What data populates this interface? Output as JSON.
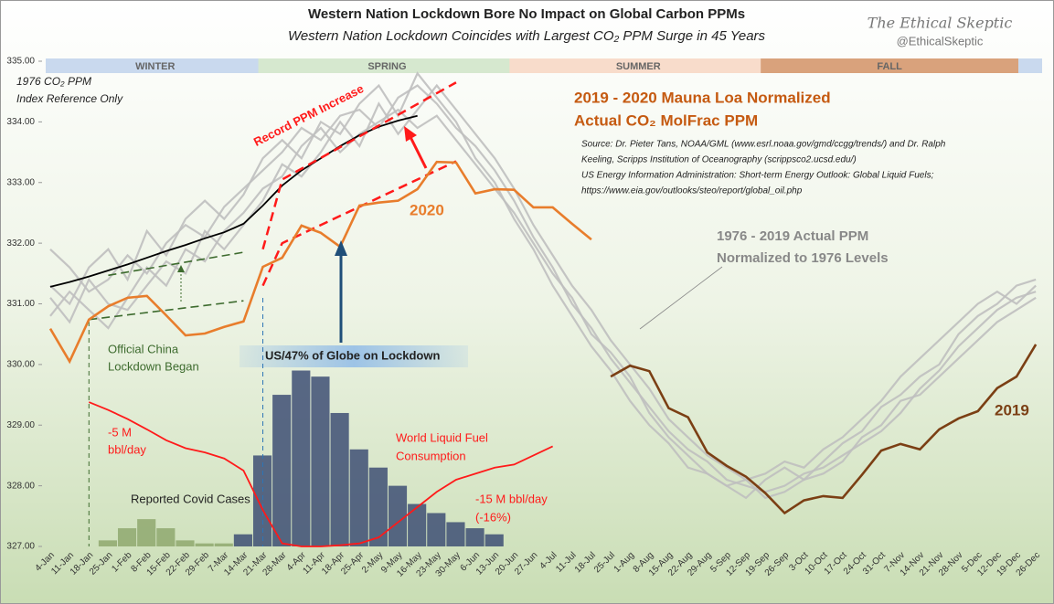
{
  "chart_data": {
    "type": "line",
    "title": "Western Nation Lockdown Bore No Impact on Global Carbon PPMs",
    "subtitle": "Western Nation Lockdown Coincides with Largest CO₂ PPM Surge in 45 Years",
    "brand": "The Ethical Skeptic",
    "handle": "@EthicalSkeptic",
    "categories": [
      "4-Jan",
      "11-Jan",
      "18-Jan",
      "25-Jan",
      "1-Feb",
      "8-Feb",
      "15-Feb",
      "22-Feb",
      "29-Feb",
      "7-Mar",
      "14-Mar",
      "21-Mar",
      "28-Mar",
      "4-Apr",
      "11-Apr",
      "18-Apr",
      "25-Apr",
      "2-May",
      "9-May",
      "16-May",
      "23-May",
      "30-May",
      "6-Jun",
      "13-Jun",
      "20-Jun",
      "27-Jun",
      "4-Jul",
      "11-Jul",
      "18-Jul",
      "25-Jul",
      "1-Aug",
      "8-Aug",
      "15-Aug",
      "22-Aug",
      "29-Aug",
      "5-Sep",
      "12-Sep",
      "19-Sep",
      "26-Sep",
      "3-Oct",
      "10-Oct",
      "17-Oct",
      "24-Oct",
      "31-Oct",
      "7-Nov",
      "14-Nov",
      "21-Nov",
      "28-Nov",
      "5-Dec",
      "12-Dec",
      "19-Dec",
      "26-Dec"
    ],
    "ylim": [
      327,
      335
    ],
    "yticks": [
      {
        "value": 327,
        "label": "327.00"
      },
      {
        "value": 328,
        "label": "328.00"
      },
      {
        "value": 329,
        "label": "329.00"
      },
      {
        "value": 330,
        "label": "330.00"
      },
      {
        "value": 331,
        "label": "331.00"
      },
      {
        "value": 332,
        "label": "332.00"
      },
      {
        "value": 333,
        "label": "333.00"
      },
      {
        "value": 334,
        "label": "334.00"
      },
      {
        "value": 335,
        "label": "335.00"
      }
    ],
    "grid": false,
    "seasons": [
      {
        "label": "WINTER",
        "start": "4-Jan",
        "end": "21-Mar",
        "color": "#c9d9ee"
      },
      {
        "label": "SPRING",
        "start": "21-Mar",
        "end": "20-Jun",
        "color": "#d6e8cf"
      },
      {
        "label": "SUMMER",
        "start": "20-Jun",
        "end": "19-Sep",
        "color": "#f8dccb"
      },
      {
        "label": "FALL",
        "start": "19-Sep",
        "end": "19-Dec",
        "color": "#d9a27c"
      }
    ],
    "reference_lines": [
      {
        "color": "#bfbfbf",
        "values": [
          331.9,
          331.6,
          331.2,
          331.4,
          331.8,
          331.5,
          332.0,
          332.3,
          332.1,
          332.6,
          332.9,
          333.2,
          333.5,
          333.9,
          333.7,
          334.1,
          334.2,
          333.9,
          334.4,
          334.6,
          334.3,
          333.9,
          333.6,
          333.2,
          332.7,
          332.1,
          331.6,
          331.0,
          330.6,
          330.1,
          329.7,
          329.3,
          328.9,
          328.6,
          328.4,
          328.1,
          328.0,
          327.9,
          328.0,
          328.2,
          328.3,
          328.5,
          328.7,
          328.9,
          329.2,
          329.6,
          329.9,
          330.3,
          330.6,
          330.9,
          331.1,
          331.2
        ]
      },
      {
        "color": "#bfbfbf",
        "values": [
          331.3,
          331.0,
          331.6,
          331.9,
          331.4,
          332.2,
          331.8,
          332.4,
          332.7,
          332.4,
          332.8,
          333.4,
          333.7,
          333.4,
          334.0,
          333.8,
          334.3,
          334.6,
          334.1,
          334.8,
          334.4,
          334.0,
          333.4,
          333.0,
          332.4,
          331.9,
          331.3,
          330.8,
          330.3,
          329.9,
          329.4,
          329.0,
          328.7,
          328.3,
          328.2,
          328.0,
          327.8,
          328.1,
          328.3,
          328.1,
          328.4,
          328.7,
          328.9,
          329.3,
          329.5,
          329.8,
          330.0,
          330.5,
          330.8,
          331.0,
          331.3,
          331.4
        ]
      },
      {
        "color": "#bfbfbf",
        "values": [
          330.8,
          331.2,
          330.9,
          330.6,
          331.1,
          331.6,
          331.3,
          331.9,
          331.7,
          332.2,
          332.5,
          332.9,
          333.1,
          333.6,
          333.9,
          333.5,
          333.8,
          334.0,
          334.2,
          333.9,
          334.1,
          333.7,
          333.3,
          332.9,
          332.5,
          332.0,
          331.5,
          331.1,
          330.5,
          330.2,
          329.8,
          329.2,
          328.8,
          328.5,
          328.2,
          328.0,
          328.1,
          327.8,
          327.9,
          328.1,
          328.2,
          328.4,
          328.8,
          329.0,
          329.4,
          329.5,
          329.8,
          330.1,
          330.4,
          330.7,
          330.9,
          331.1
        ]
      },
      {
        "color": "#bfbfbf",
        "values": [
          331.1,
          330.7,
          331.4,
          331.0,
          330.9,
          331.3,
          331.7,
          331.5,
          332.2,
          331.9,
          332.3,
          332.7,
          333.3,
          333.1,
          333.5,
          334.0,
          333.6,
          334.3,
          333.8,
          334.2,
          334.6,
          334.2,
          333.8,
          333.4,
          332.9,
          332.3,
          331.8,
          331.3,
          330.9,
          330.4,
          330.0,
          329.6,
          329.1,
          328.8,
          328.5,
          328.3,
          328.1,
          328.2,
          328.4,
          328.3,
          328.6,
          328.8,
          329.1,
          329.4,
          329.8,
          330.1,
          330.4,
          330.7,
          331.0,
          331.2,
          331.0,
          331.3
        ]
      }
    ],
    "reference_1976": {
      "color": "#000000",
      "values": [
        331.28,
        331.36,
        331.45,
        331.55,
        331.65,
        331.76,
        331.87,
        331.97,
        332.08,
        332.18,
        332.32,
        332.62,
        332.95,
        333.2,
        333.4,
        333.6,
        333.78,
        333.92,
        334.02,
        334.1,
        null,
        null,
        null,
        null,
        null,
        null,
        null,
        null,
        null,
        null,
        null,
        null,
        null,
        null,
        null,
        null,
        null,
        null,
        null,
        null,
        null,
        null,
        null,
        null,
        null,
        null,
        null,
        null,
        null,
        null,
        null,
        null
      ]
    },
    "series": [
      {
        "name": "2020",
        "color": "#e87d2c",
        "values": [
          330.59,
          330.05,
          330.74,
          330.96,
          331.1,
          331.13,
          330.81,
          330.48,
          330.51,
          330.62,
          330.71,
          331.61,
          331.76,
          332.29,
          332.17,
          331.94,
          332.62,
          332.67,
          332.7,
          332.89,
          333.34,
          333.33,
          332.82,
          332.89,
          332.88,
          332.59,
          332.59,
          332.32,
          332.06,
          null,
          null,
          null,
          null,
          null,
          null,
          null,
          null,
          null,
          null,
          null,
          null,
          null,
          null,
          null,
          null,
          null,
          null,
          null,
          null,
          null,
          null,
          null
        ]
      },
      {
        "name": "2019",
        "color": "#7b3f14",
        "values": [
          null,
          null,
          null,
          null,
          null,
          null,
          null,
          null,
          null,
          null,
          null,
          null,
          null,
          null,
          null,
          null,
          null,
          null,
          null,
          null,
          null,
          null,
          null,
          null,
          null,
          null,
          null,
          null,
          null,
          329.8,
          329.98,
          329.89,
          329.28,
          329.13,
          328.55,
          328.33,
          328.15,
          327.88,
          327.55,
          327.76,
          327.83,
          327.8,
          328.18,
          328.58,
          328.69,
          328.6,
          328.93,
          329.11,
          329.23,
          329.61,
          329.8,
          330.33
        ]
      }
    ],
    "trend_lines": [
      {
        "color": "#ff1a1a",
        "x": [
          "21-Mar",
          "28-Mar",
          "30-May"
        ],
        "values": [
          331.9,
          333.05,
          334.65
        ]
      },
      {
        "color": "#ff1a1a",
        "x": [
          "21-Mar",
          "28-Mar",
          "30-May"
        ],
        "values": [
          331.3,
          332.0,
          333.35
        ]
      },
      {
        "color": "#3d6b2e",
        "x": [
          "18-Jan",
          "14-Mar"
        ],
        "values": [
          330.74,
          331.05
        ]
      },
      {
        "color": "#3d6b2e",
        "x": [
          "25-Jan",
          "14-Mar"
        ],
        "values": [
          331.47,
          331.85
        ]
      }
    ],
    "fuel_consumption": {
      "color": "#ff1a1a",
      "x": [
        "18-Jan",
        "25-Jan",
        "1-Feb",
        "8-Feb",
        "15-Feb",
        "22-Feb",
        "29-Feb",
        "7-Mar",
        "14-Mar",
        "21-Mar",
        "28-Mar",
        "4-Apr",
        "11-Apr",
        "18-Apr",
        "25-Apr",
        "2-May",
        "9-May",
        "16-May",
        "23-May",
        "30-May",
        "6-Jun",
        "13-Jun",
        "20-Jun",
        "27-Jun",
        "4-Jul"
      ],
      "values": [
        329.38,
        329.25,
        329.1,
        328.93,
        328.75,
        328.62,
        328.55,
        328.45,
        328.25,
        327.6,
        327.05,
        327.0,
        327.0,
        327.02,
        327.05,
        327.15,
        327.4,
        327.65,
        327.9,
        328.1,
        328.2,
        328.3,
        328.35,
        328.5,
        328.65
      ]
    },
    "covid_cases": [
      {
        "color": "#8fa86e",
        "x": [
          "25-Jan",
          "1-Feb",
          "8-Feb",
          "15-Feb",
          "22-Feb",
          "29-Feb",
          "7-Mar"
        ],
        "values": [
          327.1,
          327.3,
          327.45,
          327.3,
          327.1,
          327.05,
          327.05
        ]
      },
      {
        "color": "#3e4f74",
        "x": [
          "14-Mar",
          "21-Mar",
          "28-Mar",
          "4-Apr",
          "11-Apr",
          "18-Apr",
          "25-Apr",
          "2-May",
          "9-May",
          "16-May",
          "23-May",
          "30-May",
          "6-Jun",
          "13-Jun"
        ],
        "values": [
          327.2,
          328.5,
          329.5,
          329.9,
          329.8,
          329.2,
          328.6,
          328.3,
          328.0,
          327.7,
          327.55,
          327.4,
          327.3,
          327.2
        ]
      }
    ],
    "event_lines": [
      {
        "x": "18-Jan",
        "color": "#3d6b2e"
      },
      {
        "x": "21-Mar",
        "color": "#2e75b6"
      }
    ],
    "annotations": [
      "1976 CO₂ PPM",
      "Index Reference Only",
      "Record PPM Increase",
      "2019 - 2020 Mauna Loa Normalized",
      "Actual CO₂ MolFrac PPM",
      "Source: Dr. Pieter Tans, NOAA/GML (www.esrl.noaa.gov/gmd/ccgg/trends/)  and Dr. Ralph",
      "Keeling, Scripps Institution of Oceanography (scrippsco2.ucsd.edu/)",
      "US Energy Information Administration: Short-term Energy Outlook: Global Liquid Fuels;",
      "https://www.eia.gov/outlooks/steo/report/global_oil.php",
      "2020",
      "1976 - 2019 Actual PPM",
      "Normalized to 1976 Levels",
      "Official China",
      "Lockdown Began",
      "US/47% of Globe on Lockdown",
      "-5 M",
      "bbl/day",
      "World Liquid Fuel",
      "Consumption",
      "-15 M bbl/day",
      "(-16%)",
      "Reported Covid Cases",
      "2019"
    ]
  }
}
